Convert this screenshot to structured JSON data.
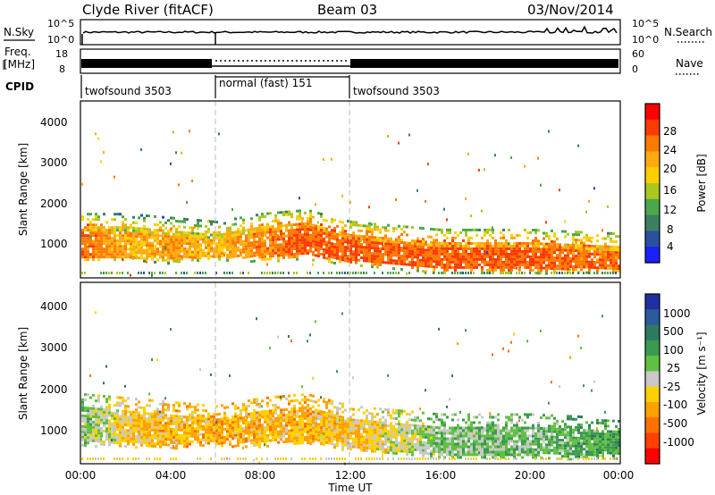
{
  "header": {
    "station": "Clyde River (fitACF)",
    "beam": "Beam 03",
    "date": "03/Nov/2014"
  },
  "top_panels": {
    "nsky_label": "N.Sky",
    "nsky_ticks": [
      "10^5",
      "10^0"
    ],
    "nsearch_label": "N.Search",
    "nsearch_ticks": [
      "10^5",
      "10^0"
    ],
    "freq_label_line1": "Freq.",
    "freq_label_line2": "[MHz]",
    "freq_ticks": [
      "18",
      "8"
    ],
    "nave_label": "Nave",
    "nave_ticks": [
      "60",
      "0"
    ],
    "cpid_label": "CPID",
    "cpid_segments": [
      {
        "label": "twofsound 3503",
        "start_hour": 0,
        "end_hour": 6
      },
      {
        "label": "normal (fast) 151",
        "start_hour": 6,
        "end_hour": 12
      },
      {
        "label": "twofsound 3503",
        "start_hour": 12,
        "end_hour": 24
      }
    ]
  },
  "power_panel": {
    "ylabel": "Slant Range [km]",
    "yticks": [
      "4000",
      "3000",
      "2000",
      "1000"
    ],
    "colorbar_label": "Power [dB]",
    "colorbar_ticks": [
      "28",
      "24",
      "20",
      "16",
      "12",
      "8",
      "4"
    ],
    "colorbar_colors": [
      "#ff0000",
      "#ff3a00",
      "#ff7a00",
      "#ffaa10",
      "#ffd000",
      "#a8c820",
      "#4aa84a",
      "#3a8060",
      "#2a50a0",
      "#1a20ff"
    ]
  },
  "velocity_panel": {
    "ylabel": "Slant Range [km]",
    "yticks": [
      "4000",
      "3000",
      "2000",
      "1000"
    ],
    "colorbar_label": "Velocity [m s⁻¹]",
    "colorbar_ticks": [
      "1000",
      "500",
      "100",
      "25",
      "-25",
      "-100",
      "-500",
      "-1000"
    ],
    "colorbar_colors": [
      "#2030a0",
      "#2a5aa0",
      "#2e7a60",
      "#3a9a50",
      "#60c040",
      "#c8c8c8",
      "#ffd000",
      "#ffa000",
      "#ff7000",
      "#ff4000",
      "#ff0000"
    ]
  },
  "xaxis": {
    "ticks": [
      "00:00",
      "04:00",
      "08:00",
      "12:00",
      "16:00",
      "20:00",
      "00:00"
    ],
    "label": "Time UT"
  },
  "chart_data": {
    "type": "heatmap",
    "x_range_hours": [
      0,
      24
    ],
    "y_range_km": [
      180,
      4600
    ],
    "x_unit": "Time UT (hours)",
    "y_unit": "Slant Range [km]",
    "panels": [
      {
        "name": "Power [dB]",
        "value_range": [
          0,
          30
        ],
        "main_band": [
          {
            "hour": 0.0,
            "range_km": [
              700,
              1500
            ],
            "value": 28
          },
          {
            "hour": 2.0,
            "range_km": [
              700,
              1500
            ],
            "value": 22
          },
          {
            "hour": 4.0,
            "range_km": [
              650,
              1400
            ],
            "value": 24
          },
          {
            "hour": 6.0,
            "range_km": [
              700,
              1300
            ],
            "value": 22
          },
          {
            "hour": 8.0,
            "range_km": [
              700,
              1500
            ],
            "value": 26
          },
          {
            "hour": 10.0,
            "range_km": [
              750,
              1600
            ],
            "value": 28
          },
          {
            "hour": 12.0,
            "range_km": [
              600,
              1300
            ],
            "value": 28
          },
          {
            "hour": 16.0,
            "range_km": [
              400,
              1100
            ],
            "value": 28
          },
          {
            "hour": 20.0,
            "range_km": [
              400,
              1100
            ],
            "value": 28
          },
          {
            "hour": 24.0,
            "range_km": [
              400,
              1000
            ],
            "value": 26
          }
        ]
      },
      {
        "name": "Velocity [m s-1]",
        "value_range": [
          -1000,
          1000
        ],
        "main_band": [
          {
            "hour": 0.0,
            "range_km": [
              700,
              1600
            ],
            "value": 150
          },
          {
            "hour": 2.0,
            "range_km": [
              700,
              1500
            ],
            "value": -200
          },
          {
            "hour": 4.0,
            "range_km": [
              650,
              1400
            ],
            "value": -300
          },
          {
            "hour": 6.0,
            "range_km": [
              700,
              1300
            ],
            "value": -350
          },
          {
            "hour": 8.0,
            "range_km": [
              700,
              1500
            ],
            "value": -300
          },
          {
            "hour": 10.0,
            "range_km": [
              750,
              1600
            ],
            "value": -300
          },
          {
            "hour": 12.0,
            "range_km": [
              600,
              1300
            ],
            "value": -250
          },
          {
            "hour": 16.0,
            "range_km": [
              400,
              1100
            ],
            "value": 150
          },
          {
            "hour": 20.0,
            "range_km": [
              400,
              1100
            ],
            "value": 200
          },
          {
            "hour": 24.0,
            "range_km": [
              400,
              1000
            ],
            "value": 400
          }
        ]
      }
    ]
  }
}
